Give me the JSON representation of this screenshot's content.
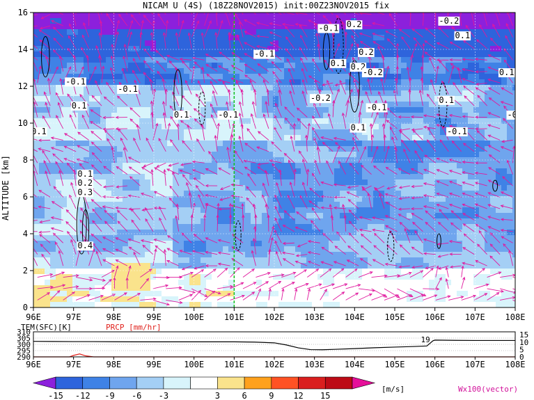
{
  "chart_data": [
    {
      "type": "heatmap",
      "title": "NICAM U (4S) (18Z28NOV2015) init:00Z23NOV2015 fix",
      "xlabel": "",
      "ylabel": "ALTITUDE [km]",
      "x_ticks": [
        "96E",
        "97E",
        "98E",
        "99E",
        "100E",
        "101E",
        "102E",
        "103E",
        "104E",
        "105E",
        "106E",
        "107E",
        "108E"
      ],
      "y_ticks": [
        0,
        2,
        4,
        6,
        8,
        10,
        12,
        14,
        16
      ],
      "xlim": [
        96,
        108
      ],
      "ylim": [
        0,
        16
      ],
      "grid": true,
      "marked_longitude": 101,
      "contour_labels": [
        {
          "text": "-0.1",
          "lon": 96.8,
          "alt": 12.1
        },
        {
          "text": "-0.1",
          "lon": 98.1,
          "alt": 11.7
        },
        {
          "text": "0.1",
          "lon": 96.95,
          "alt": 10.8
        },
        {
          "text": "0.1",
          "lon": 95.95,
          "alt": 9.4
        },
        {
          "text": "0.1",
          "lon": 99.5,
          "alt": 10.3
        },
        {
          "text": "-0.1",
          "lon": 100.6,
          "alt": 10.3
        },
        {
          "text": "-0.1",
          "lon": 103.1,
          "alt": 15.0
        },
        {
          "text": "0.2",
          "lon": 103.8,
          "alt": 15.2
        },
        {
          "text": "-0.1",
          "lon": 101.5,
          "alt": 13.6
        },
        {
          "text": "0.1",
          "lon": 103.4,
          "alt": 13.1
        },
        {
          "text": "0.2",
          "lon": 104.1,
          "alt": 13.7
        },
        {
          "text": "0.2",
          "lon": 103.9,
          "alt": 12.9
        },
        {
          "text": "-0.2",
          "lon": 104.2,
          "alt": 12.6
        },
        {
          "text": "-0.2",
          "lon": 102.9,
          "alt": 11.2
        },
        {
          "text": "-0.1",
          "lon": 104.3,
          "alt": 10.7
        },
        {
          "text": "0.1",
          "lon": 103.9,
          "alt": 9.6
        },
        {
          "text": "0.1",
          "lon": 106.5,
          "alt": 14.6
        },
        {
          "text": "-0.2",
          "lon": 106.1,
          "alt": 15.4
        },
        {
          "text": "0.1",
          "lon": 107.6,
          "alt": 12.6
        },
        {
          "text": "0.1",
          "lon": 106.1,
          "alt": 11.1
        },
        {
          "text": "-0.1",
          "lon": 106.3,
          "alt": 9.4
        },
        {
          "text": "-0.",
          "lon": 107.8,
          "alt": 10.3
        },
        {
          "text": "0.1",
          "lon": 97.1,
          "alt": 7.1
        },
        {
          "text": "0.2",
          "lon": 97.1,
          "alt": 6.6
        },
        {
          "text": "0.3",
          "lon": 97.1,
          "alt": 6.1
        },
        {
          "text": "0.4",
          "lon": 97.1,
          "alt": 3.2
        }
      ],
      "colorbar": {
        "levels": [
          -15,
          -12,
          -9,
          -6,
          -3,
          3,
          6,
          9,
          12,
          15
        ],
        "colors": [
          "#8c20dc",
          "#2e64dc",
          "#3f82e6",
          "#6fa5ee",
          "#a4cff5",
          "#d8f4fb",
          "#ffffff",
          "#fae38c",
          "#ffa11d",
          "#ff5224",
          "#da1e1e",
          "#bd0b16",
          "#e6109a"
        ],
        "unit": "[m/s]"
      },
      "vector_label": "Wx100(vector)"
    },
    {
      "type": "line",
      "title": "",
      "xlabel": "",
      "x_ticks": [
        "96E",
        "97E",
        "98E",
        "99E",
        "100E",
        "101E",
        "102E",
        "103E",
        "104E",
        "105E",
        "106E",
        "107E",
        "108E"
      ],
      "y_ticks_left": [
        290,
        295,
        300,
        305,
        310
      ],
      "y_ticks_right": [
        0,
        5,
        10,
        15
      ],
      "series": [
        {
          "name": "TEM(SFC)[K]",
          "color": "#000000",
          "x": [
            96,
            96.5,
            97,
            97.5,
            98,
            98.5,
            99,
            100,
            101,
            101.5,
            102,
            102.3,
            102.6,
            102.9,
            103.2,
            103.5,
            104,
            104.5,
            105,
            105.5,
            105.8,
            105.95,
            106,
            106.5,
            107,
            107.5,
            108
          ],
          "values": [
            302.4,
            302.3,
            302.2,
            302.2,
            302.1,
            302.0,
            302.0,
            302.0,
            302.0,
            301.8,
            301.2,
            299.5,
            297.2,
            295.8,
            295.7,
            296.0,
            296.6,
            297.3,
            297.8,
            298.3,
            298.7,
            302.8,
            303.4,
            303.2,
            303.1,
            303.1,
            303.1
          ]
        },
        {
          "name": "PRCP [mm/hr]",
          "color": "#e0201a",
          "x": [
            96,
            96.9,
            97.0,
            97.15,
            97.3,
            97.5,
            98,
            100,
            102,
            104,
            106,
            108
          ],
          "values": [
            0,
            0,
            1.0,
            2.0,
            0.7,
            0,
            0,
            0,
            0,
            0,
            0,
            0
          ]
        }
      ],
      "annotations": [
        "19"
      ]
    }
  ]
}
